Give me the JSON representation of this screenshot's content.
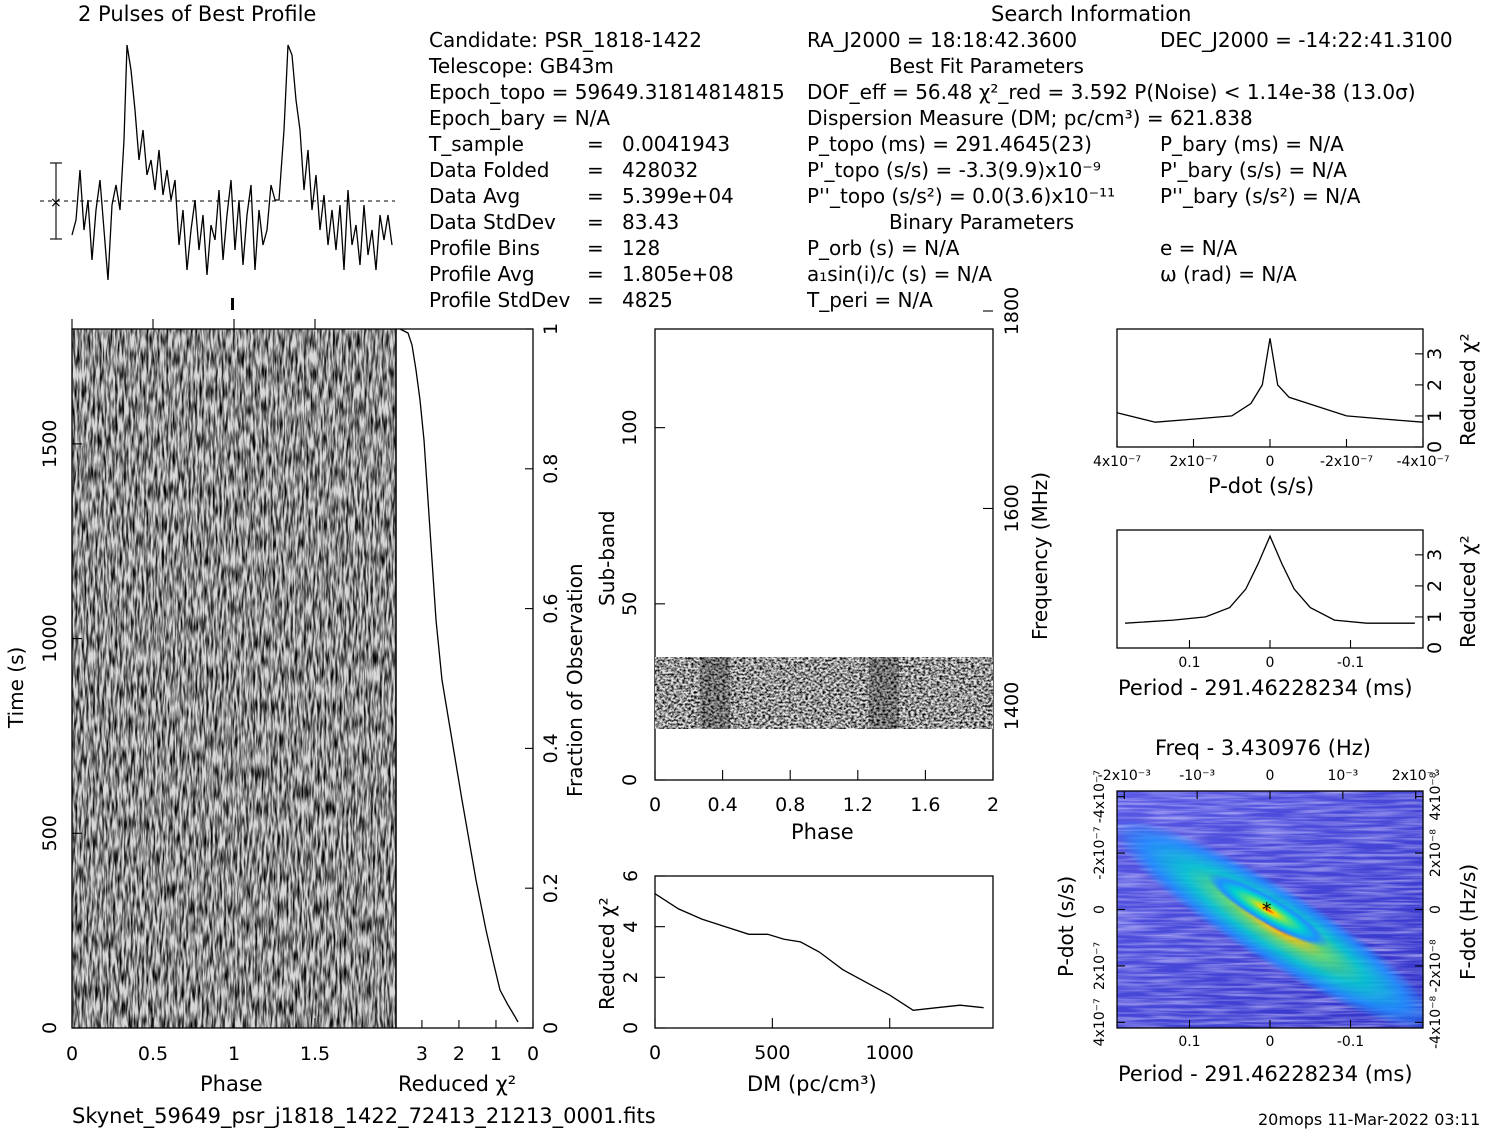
{
  "header": {
    "profile_title": "2 Pulses of Best Profile",
    "search_title": "Search Information",
    "candidate": "Candidate:  PSR_1818-1422",
    "telescope": "Telescope:  GB43m",
    "epoch_topo": "Epoch_topo = 59649.31814814815",
    "epoch_bary": "Epoch_bary = N/A",
    "left_rows": [
      {
        "name": "T_sample",
        "value": "0.0041943"
      },
      {
        "name": "Data Folded",
        "value": "428032"
      },
      {
        "name": "Data Avg",
        "value": "5.399e+04"
      },
      {
        "name": "Data StdDev",
        "value": "83.43"
      },
      {
        "name": "Profile Bins",
        "value": "128"
      },
      {
        "name": "Profile Avg",
        "value": "1.805e+08"
      },
      {
        "name": "Profile StdDev",
        "value": "4825"
      }
    ],
    "ra": "RA_J2000 = 18:18:42.3600",
    "dec": "DEC_J2000 = -14:22:41.3100",
    "best_fit_title": "Best Fit Parameters",
    "dof": "DOF_eff = 56.48  χ²_red = 3.592  P(Noise) < 1.14e-38  (13.0σ)",
    "dm": "Dispersion Measure (DM; pc/cm³) = 621.838",
    "p_topo": "P_topo (ms) =  291.4645(23)",
    "pd_topo": "P'_topo (s/s) = -3.3(9.9)x10⁻⁹",
    "pdd_topo": "P''_topo (s/s²) = 0.0(3.6)x10⁻¹¹",
    "p_bary": "P_bary (ms) = N/A",
    "pd_bary": "P'_bary (s/s) = N/A",
    "pdd_bary": "P''_bary (s/s²) = N/A",
    "binary_title": "Binary Parameters",
    "p_orb": "P_orb (s) = N/A",
    "a1sini": "a₁sin(i)/c (s) = N/A",
    "t_peri": "T_peri = N/A",
    "ecc": "e = N/A",
    "omega": "ω (rad) = N/A"
  },
  "footer": {
    "filename": "Skynet_59649_psr_j1818_1422_72413_21213_0001.fits",
    "stamp": "20mops 11-Mar-2022 03:11"
  },
  "colors": {
    "ink": "#000000",
    "bg": "#ffffff",
    "ppdot_low": "#3b3bd6",
    "ppdot_mid": "#00c8c8",
    "ppdot_high": "#ffd400"
  },
  "chart_data": [
    {
      "id": "profile",
      "type": "line",
      "title": "2 Pulses of Best Profile",
      "x": [
        0,
        0.1,
        0.2,
        0.3,
        0.35,
        0.4,
        0.5,
        0.6,
        0.7,
        0.8,
        0.9,
        1.0,
        1.1,
        1.2,
        1.3,
        1.35,
        1.4,
        1.5,
        1.6,
        1.7,
        1.8,
        1.9,
        2.0
      ],
      "values": [
        0.1,
        0.3,
        -0.2,
        0.9,
        4.8,
        2.6,
        1.1,
        0.2,
        -0.4,
        0.1,
        -0.3,
        0.1,
        0.3,
        -0.2,
        0.9,
        4.8,
        2.6,
        1.1,
        0.2,
        -0.4,
        0.1,
        -0.3,
        0.1
      ],
      "xlim": [
        0,
        2
      ]
    },
    {
      "id": "time_phase",
      "type": "heatmap",
      "xlabel": "Phase",
      "ylabel": "Time (s)",
      "xticks": [
        "0",
        "0.5",
        "1",
        "1.5"
      ],
      "yticks": [
        "0",
        "500",
        "1000",
        "1500"
      ],
      "xlim": [
        0,
        2
      ],
      "ylim": [
        0,
        1795
      ]
    },
    {
      "id": "time_chi2",
      "type": "line",
      "xlabel": "Reduced χ²",
      "ylabel": "Fraction of Observation",
      "xticks": [
        "3",
        "2",
        "1",
        "0"
      ],
      "yticks": [
        "0",
        "0.2",
        "0.4",
        "0.6",
        "0.8",
        "1"
      ],
      "x": [
        0.1,
        0.8,
        1.5,
        2.1,
        2.6,
        3.0,
        3.2,
        3.4,
        3.45,
        3.55
      ],
      "y": [
        0.0,
        0.05,
        0.1,
        0.2,
        0.35,
        0.5,
        0.65,
        0.8,
        0.9,
        1.0
      ],
      "xlim": [
        0,
        3.7
      ],
      "ylim": [
        0,
        1
      ]
    },
    {
      "id": "subband_phase",
      "type": "heatmap",
      "xlabel": "Phase",
      "ylabel": "Sub-band",
      "y2label": "Frequency (MHz)",
      "xticks": [
        "0",
        "0.4",
        "0.8",
        "1.2",
        "1.6",
        "2"
      ],
      "yticks": [
        "0",
        "50",
        "100"
      ],
      "y2ticks": [
        "1400",
        "1600",
        "1800"
      ],
      "xlim": [
        0,
        2
      ],
      "ylim": [
        0,
        128
      ],
      "band_rows": [
        15,
        35
      ]
    },
    {
      "id": "dm_chi2",
      "type": "line",
      "xlabel": "DM (pc/cm³)",
      "ylabel": "Reduced χ²",
      "xticks": [
        "0",
        "500",
        "1000"
      ],
      "yticks": [
        "0",
        "2",
        "4",
        "6"
      ],
      "x": [
        0,
        100,
        200,
        300,
        400,
        480,
        550,
        620,
        700,
        800,
        900,
        1000,
        1100,
        1200,
        1300,
        1400
      ],
      "y": [
        5.3,
        4.7,
        4.3,
        4.0,
        3.7,
        3.7,
        3.5,
        3.4,
        3.0,
        2.3,
        1.8,
        1.3,
        0.7,
        0.8,
        0.9,
        0.8
      ],
      "xlim": [
        0,
        1440
      ],
      "ylim": [
        0,
        6
      ]
    },
    {
      "id": "pdot_chi2",
      "type": "line",
      "xlabel": "P-dot (s/s)",
      "ylabel": "Reduced χ²",
      "xticks": [
        "4x10⁻⁷",
        "2x10⁻⁷",
        "0",
        "-2x10⁻⁷",
        "-4x10⁻⁷"
      ],
      "yticks": [
        "0",
        "1",
        "2",
        "3"
      ],
      "x": [
        -4,
        -3,
        -2,
        -1,
        -0.5,
        -0.2,
        0,
        0.2,
        0.5,
        1,
        2,
        3,
        4
      ],
      "y": [
        0.8,
        0.9,
        1.0,
        1.4,
        1.6,
        2.0,
        3.5,
        2.0,
        1.4,
        1.0,
        0.9,
        0.8,
        1.1
      ],
      "xlim": [
        4,
        -4
      ],
      "ylim": [
        0,
        3.8
      ]
    },
    {
      "id": "period_chi2",
      "type": "line",
      "xlabel": "Period - 291.46228234 (ms)",
      "ylabel": "Reduced χ²",
      "xticks": [
        "0.1",
        "0",
        "-0.1"
      ],
      "yticks": [
        "0",
        "1",
        "2",
        "3"
      ],
      "x": [
        0.18,
        0.12,
        0.08,
        0.05,
        0.03,
        0.015,
        0,
        -0.015,
        -0.03,
        -0.05,
        -0.08,
        -0.12,
        -0.18
      ],
      "y": [
        0.8,
        0.9,
        1.0,
        1.3,
        1.9,
        2.7,
        3.6,
        2.7,
        1.9,
        1.3,
        0.9,
        0.8,
        0.8
      ],
      "xlim": [
        0.19,
        -0.19
      ],
      "ylim": [
        0,
        3.8
      ]
    },
    {
      "id": "p_pdot_plane",
      "type": "heatmap",
      "title": "Freq - 3.430976 (Hz)",
      "xlabel": "Period - 291.46228234 (ms)",
      "ylabel": "P-dot (s/s)",
      "y2label": "F-dot (Hz/s)",
      "xticks": [
        "0.1",
        "0",
        "-0.1"
      ],
      "x2ticks": [
        "-2x10⁻³",
        "-10⁻³",
        "0",
        "10⁻³",
        "2x10⁻³"
      ],
      "yticks": [
        "4x10⁻⁷",
        "2x10⁻⁷",
        "0",
        "-2x10⁻⁷",
        "-4x10⁻⁷"
      ],
      "y2ticks": [
        "-4x10⁻⁸",
        "-2x10⁻⁸",
        "0",
        "2x10⁻⁸",
        "4x10⁻⁸"
      ],
      "peak": [
        0,
        0
      ]
    }
  ]
}
